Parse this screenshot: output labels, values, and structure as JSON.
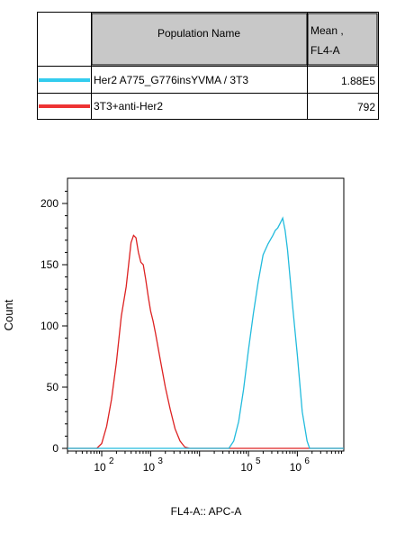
{
  "table": {
    "header_name": "Population Name",
    "header_mean_line1": "Mean ,",
    "header_mean_line2": "FL4-A",
    "rows": [
      {
        "name": "Her2 A775_G776insYVMA / 3T3",
        "mean": "1.88E5",
        "color": "#33ccee"
      },
      {
        "name": "3T3+anti-Her2",
        "mean": "792",
        "color": "#ee3333"
      }
    ]
  },
  "chart_data": {
    "type": "line",
    "xlabel": "FL4-A:: APC-A",
    "ylabel": "Count",
    "x_scale": "log",
    "xlim_log10": [
      1.3,
      6.95
    ],
    "ylim": [
      0,
      215
    ],
    "y_ticks": [
      0,
      50,
      100,
      150,
      200
    ],
    "x_tick_labels": [
      {
        "base": "10",
        "exp": "2",
        "log10": 2
      },
      {
        "base": "10",
        "exp": "3",
        "log10": 3
      },
      {
        "base": "10",
        "exp": "5",
        "log10": 5
      },
      {
        "base": "10",
        "exp": "6",
        "log10": 6
      }
    ],
    "series": [
      {
        "name": "3T3+anti-Her2",
        "color": "#dd2222",
        "log10_x": [
          1.3,
          1.9,
          2.0,
          2.1,
          2.2,
          2.3,
          2.4,
          2.5,
          2.55,
          2.6,
          2.65,
          2.7,
          2.75,
          2.8,
          2.85,
          2.9,
          2.95,
          3.0,
          3.05,
          3.1,
          3.2,
          3.3,
          3.4,
          3.5,
          3.6,
          3.7,
          3.8,
          6.95
        ],
        "y": [
          0,
          0,
          4,
          18,
          40,
          70,
          108,
          132,
          150,
          168,
          174,
          172,
          160,
          152,
          150,
          138,
          124,
          112,
          104,
          94,
          72,
          50,
          32,
          16,
          6,
          1,
          0,
          0
        ]
      },
      {
        "name": "Her2 A775_G776insYVMA / 3T3",
        "color": "#22bbdd",
        "log10_x": [
          1.3,
          4.6,
          4.7,
          4.8,
          4.9,
          5.0,
          5.1,
          5.2,
          5.3,
          5.4,
          5.5,
          5.55,
          5.6,
          5.65,
          5.7,
          5.75,
          5.8,
          5.85,
          5.9,
          6.0,
          6.1,
          6.2,
          6.25,
          6.95
        ],
        "y": [
          0,
          0,
          6,
          22,
          48,
          80,
          110,
          136,
          158,
          167,
          174,
          178,
          180,
          184,
          188,
          178,
          162,
          140,
          118,
          76,
          30,
          6,
          0,
          0
        ]
      }
    ]
  }
}
